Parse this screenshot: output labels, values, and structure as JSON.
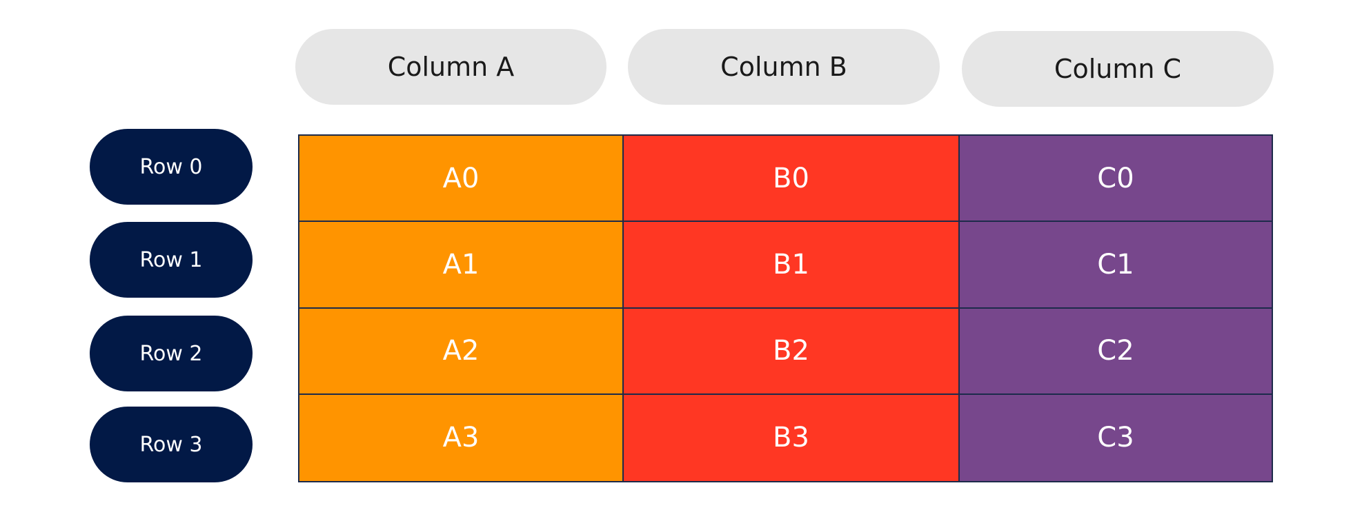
{
  "columns": [
    {
      "label": "Column A"
    },
    {
      "label": "Column B"
    },
    {
      "label": "Column C"
    }
  ],
  "rows": [
    {
      "label": "Row 0"
    },
    {
      "label": "Row 1"
    },
    {
      "label": "Row 2"
    },
    {
      "label": "Row 3"
    }
  ],
  "cells": [
    [
      "A0",
      "B0",
      "C0"
    ],
    [
      "A1",
      "B1",
      "C1"
    ],
    [
      "A2",
      "B2",
      "C2"
    ],
    [
      "A3",
      "B3",
      "C3"
    ]
  ],
  "colors": {
    "column_header_bg": "#e6e6e6",
    "row_header_bg": "#021946",
    "column_a": "#ff9400",
    "column_b": "#ff3723",
    "column_c": "#77478c",
    "grid_line": "#1c2a4a"
  }
}
